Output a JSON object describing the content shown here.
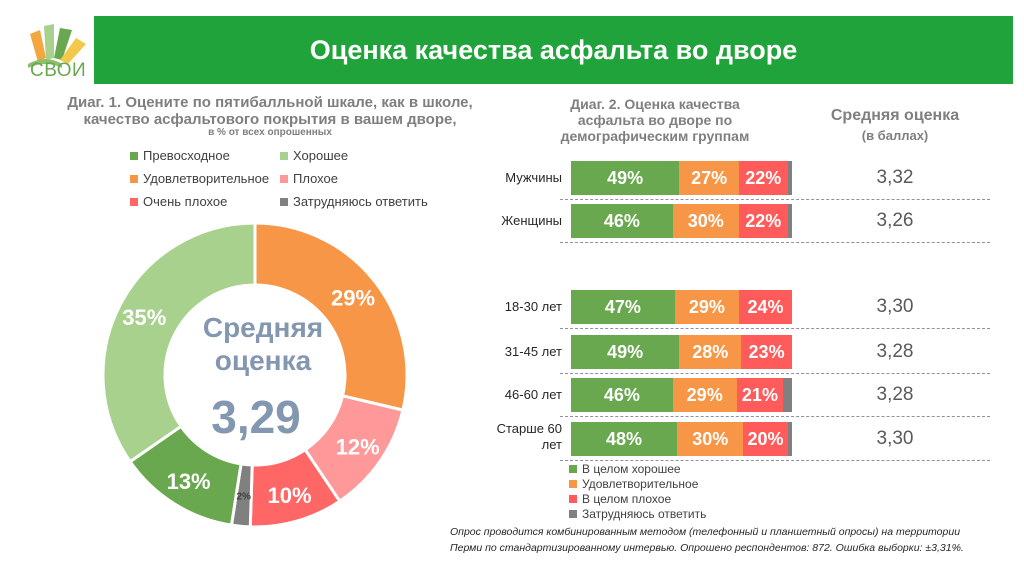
{
  "logo": {
    "text": "СВОИ"
  },
  "header": {
    "title": "Оценка качества асфальта во дворе",
    "bar_color": "#1fa33a"
  },
  "diag1": {
    "title_line1": "Диаг. 1. Оцените по пятибалльной шкале, как в школе,",
    "title_line2": "качество асфальтового покрытия в вашем дворе,",
    "subtitle": "в % от всех опрошенных",
    "legend": [
      {
        "label": "Превосходное",
        "color": "#6aa84f"
      },
      {
        "label": "Хорошее",
        "color": "#a9d18e"
      },
      {
        "label": "Удовлетворительное",
        "color": "#f79646"
      },
      {
        "label": "Плохое",
        "color": "#ff9999"
      },
      {
        "label": "Очень плохое",
        "color": "#ff6666"
      },
      {
        "label": "Затрудняюсь ответить",
        "color": "#808080"
      }
    ],
    "center_line1": "Средняя",
    "center_line2": "оценка",
    "center_value": "3,29"
  },
  "diag2": {
    "title_line1": "Диаг. 2. Оценка качества",
    "title_line2": "асфальта во дворе по",
    "title_line3": "демографическим группам",
    "avg_title": "Средняя оценка",
    "avg_subtitle": "(в баллах)",
    "legend": [
      {
        "label": "В целом хорошее",
        "color": "#6aa84f"
      },
      {
        "label": "Удовлетворительное",
        "color": "#f79646"
      },
      {
        "label": "В целом плохое",
        "color": "#ff5b5b"
      },
      {
        "label": "Затрудняюсь ответить",
        "color": "#808080"
      }
    ]
  },
  "footnote": {
    "line1": "Опрос проводится комбинированным методом (телефонный и планшетный опросы) на территории",
    "line2": "Перми по стандартизированному интервью. Опрошено респондентов: 872. Ошибка выборки: ±3,31%."
  },
  "chart_data": [
    {
      "type": "pie",
      "title": "Диаг. 1. Оцените по пятибалльной шкале, как в школе, качество асфальтового покрытия в вашем дворе,",
      "unit": "%",
      "slices": [
        {
          "label": "Удовлетворительное",
          "value": 29,
          "display": "29%",
          "color": "#f79646"
        },
        {
          "label": "Плохое",
          "value": 12,
          "display": "12%",
          "color": "#ff9999"
        },
        {
          "label": "Очень плохое",
          "value": 10,
          "display": "10%",
          "color": "#ff6666"
        },
        {
          "label": "Затрудняюсь ответить",
          "value": 2,
          "display": "2%",
          "color": "#808080"
        },
        {
          "label": "Превосходное",
          "value": 13,
          "display": "13%",
          "color": "#6aa84f"
        },
        {
          "label": "Хорошее",
          "value": 35,
          "display": "35%",
          "color": "#a9d18e"
        }
      ]
    },
    {
      "type": "bar",
      "stacked": true,
      "orientation": "horizontal",
      "title": "Диаг. 2. Оценка качества асфальта во дворе по демографическим группам",
      "categories": [
        "Мужчины",
        "Женщины",
        "18-30 лет",
        "31-45 лет",
        "46-60 лет",
        "Старше 60 лет"
      ],
      "series": [
        {
          "name": "В целом хорошее",
          "color": "#6aa84f",
          "values": [
            49,
            46,
            47,
            49,
            46,
            48
          ]
        },
        {
          "name": "Удовлетворительное",
          "color": "#f79646",
          "values": [
            27,
            30,
            29,
            28,
            29,
            30
          ]
        },
        {
          "name": "В целом плохое",
          "color": "#ff5b5b",
          "values": [
            22,
            22,
            24,
            23,
            21,
            20
          ]
        },
        {
          "name": "Затрудняюсь ответить",
          "color": "#808080",
          "values": [
            2,
            2,
            0,
            0,
            4,
            2
          ]
        }
      ],
      "average_scores": [
        "3,32",
        "3,26",
        "3,30",
        "3,28",
        "3,28",
        "3,30"
      ]
    }
  ]
}
